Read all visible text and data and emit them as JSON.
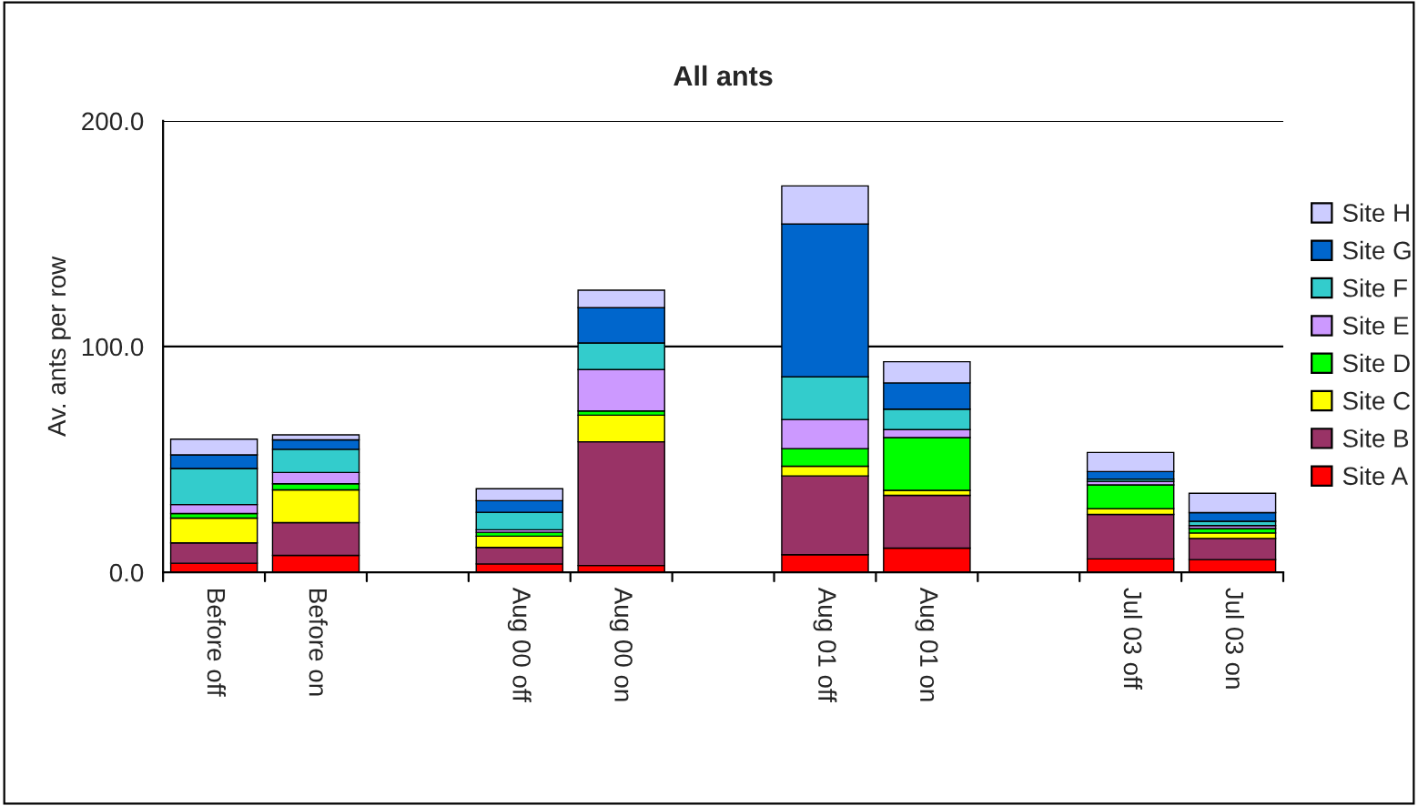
{
  "chart_data": {
    "type": "bar",
    "stacked": true,
    "title": "All ants",
    "ylabel": "Av. ants per row",
    "categories": [
      "Before off",
      "Before on",
      null,
      "Aug 00 off",
      "Aug 00 on",
      null,
      "Aug 01 off",
      "Aug 01 on",
      null,
      "Jul 03 off",
      "Jul 03 on"
    ],
    "series": [
      {
        "name": "Site A",
        "color": "#ff0000",
        "values": [
          4,
          7.5,
          null,
          3.7,
          3,
          null,
          7.8,
          10.7,
          null,
          5.9,
          5.6
        ]
      },
      {
        "name": "Site B",
        "color": "#993366",
        "values": [
          9,
          14.5,
          null,
          7.3,
          54.8,
          null,
          34.9,
          23.4,
          null,
          19.7,
          9.4
        ]
      },
      {
        "name": "Site C",
        "color": "#ffff00",
        "values": [
          11,
          14.5,
          null,
          5,
          11.8,
          null,
          4.3,
          2.2,
          null,
          2.6,
          2.4
        ]
      },
      {
        "name": "Site D",
        "color": "#00ff00",
        "values": [
          2,
          2.7,
          null,
          1.7,
          1.9,
          null,
          7.8,
          23.4,
          null,
          10.5,
          2
        ]
      },
      {
        "name": "Site E",
        "color": "#cc99ff",
        "values": [
          4,
          5,
          null,
          1.1,
          18.3,
          null,
          12.9,
          3.5,
          null,
          1.6,
          1.3
        ]
      },
      {
        "name": "Site F",
        "color": "#33cccc",
        "values": [
          16,
          10.3,
          null,
          7.8,
          11.8,
          null,
          18.9,
          9.1,
          null,
          1,
          1.9
        ]
      },
      {
        "name": "Site G",
        "color": "#0066cc",
        "values": [
          6,
          4.2,
          null,
          5.1,
          15.6,
          null,
          67.7,
          11.6,
          null,
          3.3,
          3.8
        ]
      },
      {
        "name": "Site H",
        "color": "#ccccff",
        "values": [
          7,
          2.2,
          null,
          5.3,
          7.8,
          null,
          16.9,
          9.4,
          null,
          8.5,
          8.6
        ]
      }
    ],
    "ylim": [
      0,
      200
    ],
    "yticks": [
      {
        "value": 0,
        "label": "0.0"
      },
      {
        "value": 100,
        "label": "100.0"
      },
      {
        "value": 200,
        "label": "200.0"
      }
    ],
    "grid": "y",
    "legend": "right"
  }
}
